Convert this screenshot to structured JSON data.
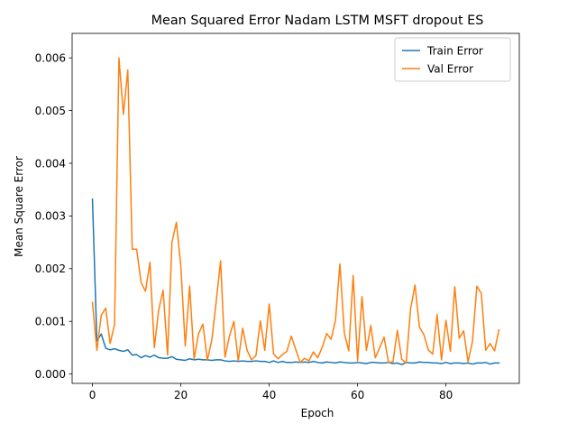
{
  "chart_data": {
    "type": "line",
    "title": "Mean Squared Error  Nadam LSTM MSFT dropout ES",
    "xlabel": "Epoch",
    "ylabel": "Mean Square Error",
    "xlim": [
      -4.6,
      96.6
    ],
    "ylim": [
      -0.000177,
      0.006465
    ],
    "xticks": [
      0,
      20,
      40,
      60,
      80
    ],
    "xtick_labels": [
      "0",
      "20",
      "40",
      "60",
      "80"
    ],
    "yticks": [
      0,
      0.001,
      0.002,
      0.003,
      0.004,
      0.005,
      0.006
    ],
    "ytick_labels": [
      "0.000",
      "0.001",
      "0.002",
      "0.003",
      "0.004",
      "0.005",
      "0.006"
    ],
    "grid": false,
    "legend": "upper right",
    "series": [
      {
        "name": "Train Error",
        "color": "#1f77b4",
        "values": [
          0.00332,
          0.00063,
          0.00076,
          0.00049,
          0.00046,
          0.00048,
          0.00045,
          0.00043,
          0.00046,
          0.00036,
          0.00037,
          0.00031,
          0.00035,
          0.00032,
          0.00036,
          0.00031,
          0.0003,
          0.0003,
          0.00033,
          0.00028,
          0.00027,
          0.00026,
          0.00029,
          0.00027,
          0.00028,
          0.00027,
          0.00027,
          0.00026,
          0.00027,
          0.00027,
          0.00025,
          0.00024,
          0.00025,
          0.00024,
          0.00025,
          0.00024,
          0.00024,
          0.00025,
          0.00024,
          0.00024,
          0.00022,
          0.00025,
          0.00022,
          0.00024,
          0.00022,
          0.00022,
          0.00023,
          0.00022,
          0.00023,
          0.00022,
          0.00024,
          0.00022,
          0.00021,
          0.00023,
          0.00022,
          0.00021,
          0.00023,
          0.00022,
          0.00021,
          0.00021,
          0.00022,
          0.00021,
          0.0002,
          0.00022,
          0.00022,
          0.00021,
          0.00021,
          0.00022,
          0.0002,
          0.00021,
          0.00018,
          0.00022,
          0.00021,
          0.00021,
          0.00023,
          0.00022,
          0.00022,
          0.00021,
          0.00021,
          0.0002,
          0.00022,
          0.0002,
          0.00021,
          0.00021,
          0.0002,
          0.00021,
          0.00019,
          0.00021,
          0.00021,
          0.00022,
          0.00019,
          0.00021,
          0.00021
        ]
      },
      {
        "name": "Val Error",
        "color": "#ff7f0e",
        "values": [
          0.00136,
          0.00045,
          0.00112,
          0.00125,
          0.00058,
          0.00094,
          0.006,
          0.00493,
          0.00577,
          0.00237,
          0.00237,
          0.00174,
          0.00157,
          0.00212,
          0.0005,
          0.00122,
          0.00159,
          0.00036,
          0.0025,
          0.00288,
          0.00205,
          0.00053,
          0.00167,
          0.00029,
          0.00076,
          0.00095,
          0.00026,
          0.00064,
          0.00137,
          0.00215,
          0.00032,
          0.00072,
          0.001,
          0.00025,
          0.00087,
          0.00045,
          0.00027,
          0.00035,
          0.00101,
          0.00045,
          0.00133,
          0.00038,
          0.00029,
          0.00037,
          0.00043,
          0.00072,
          0.00047,
          0.00022,
          0.0003,
          0.00025,
          0.00042,
          0.00031,
          0.00051,
          0.00077,
          0.00066,
          0.00102,
          0.00209,
          0.00078,
          0.00044,
          0.00187,
          0.00025,
          0.00147,
          0.00045,
          0.00092,
          0.00031,
          0.0005,
          0.0007,
          0.00022,
          0.00023,
          0.00083,
          0.00028,
          0.00021,
          0.00124,
          0.00169,
          0.00089,
          0.00075,
          0.00046,
          0.00038,
          0.00113,
          0.00027,
          0.00102,
          0.00043,
          0.00166,
          0.00068,
          0.00082,
          0.00023,
          0.00062,
          0.00167,
          0.00153,
          0.00045,
          0.00058,
          0.00044,
          0.00084
        ]
      }
    ]
  }
}
